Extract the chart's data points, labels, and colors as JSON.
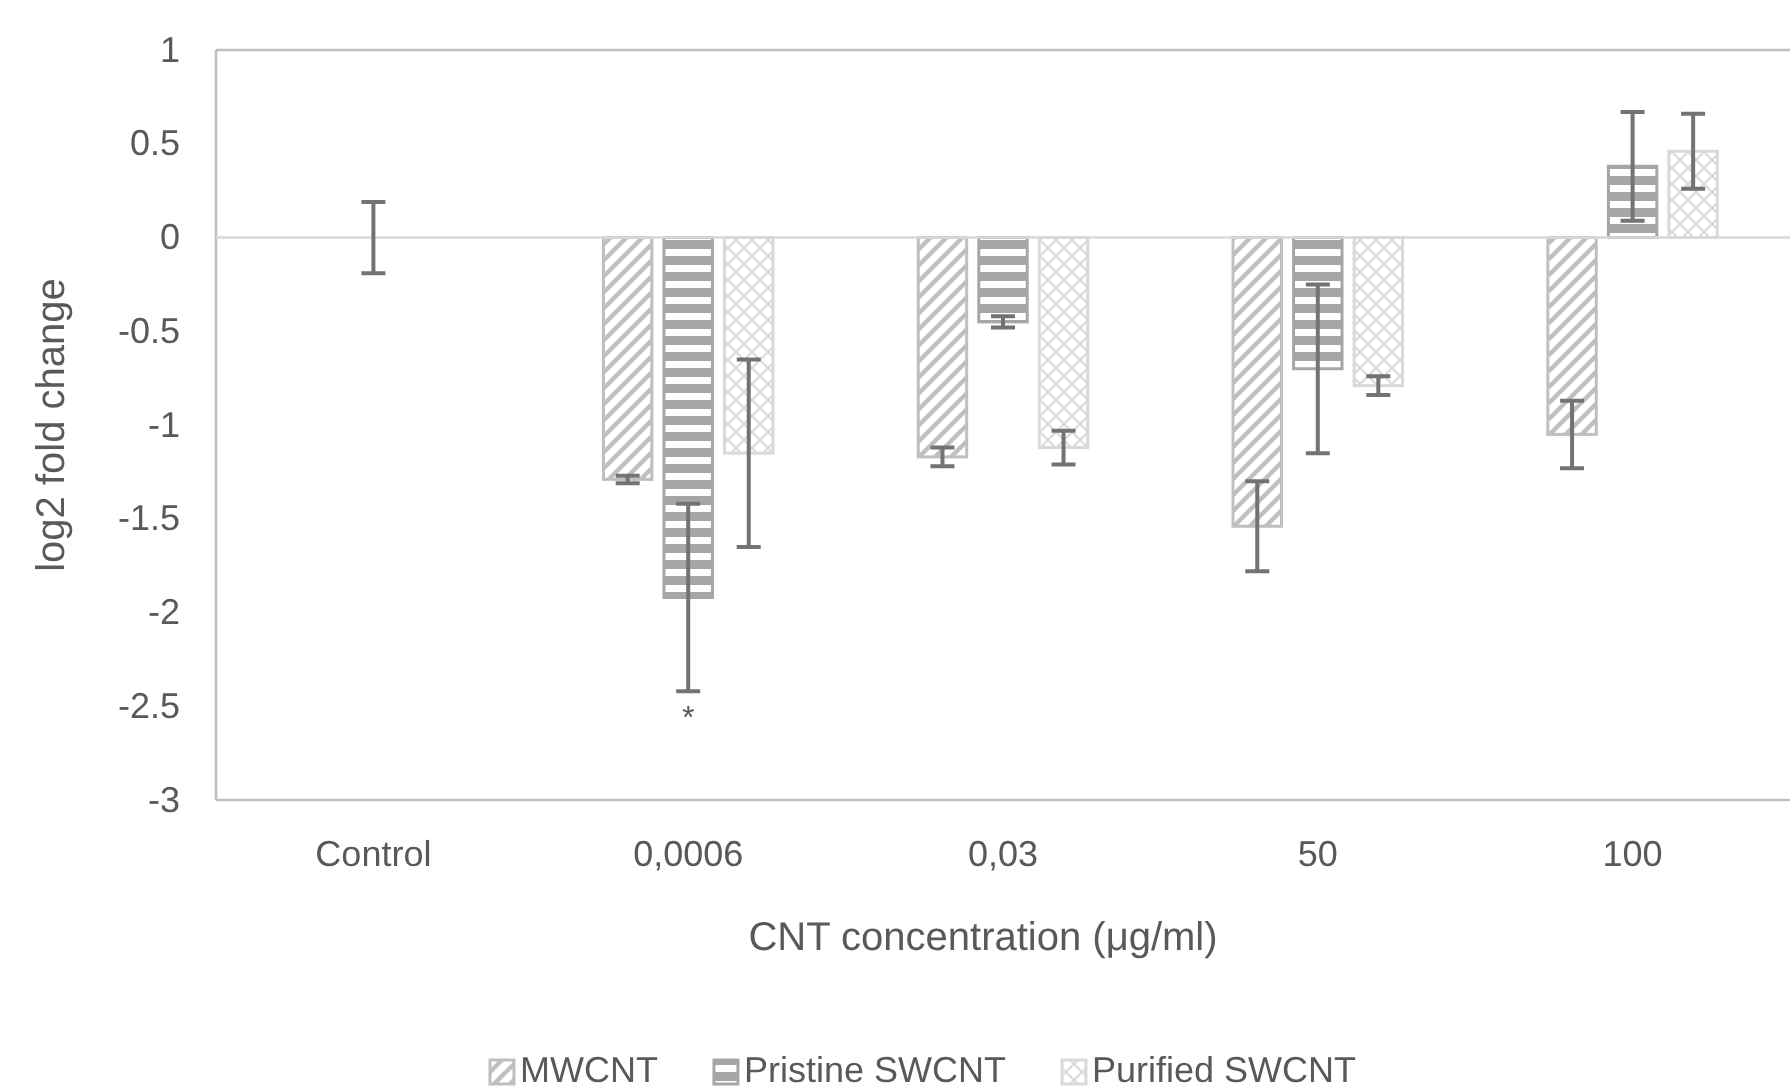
{
  "chart_data": {
    "type": "bar",
    "xlabel": "CNT concentration (μg/ml)",
    "ylabel": "log2 fold change",
    "categories": [
      "Control",
      "0,0006",
      "0,03",
      "50",
      "100"
    ],
    "series": [
      {
        "name": "MWCNT",
        "color": "#bfbfbf",
        "values": [
          null,
          -1.29,
          -1.17,
          -1.54,
          -1.05
        ],
        "errors": [
          null,
          0.02,
          0.05,
          0.24,
          0.18
        ]
      },
      {
        "name": "Pristine SWCNT",
        "color": "#a6a6a6",
        "values": [
          0,
          -1.92,
          -0.45,
          -0.7,
          0.38
        ],
        "errors": [
          0.19,
          0.5,
          0.03,
          0.45,
          0.29
        ]
      },
      {
        "name": "Purified SWCNT",
        "color": "#d9d9d9",
        "values": [
          null,
          -1.15,
          -1.12,
          -0.79,
          0.46
        ],
        "errors": [
          null,
          0.5,
          0.09,
          0.05,
          0.2
        ]
      }
    ],
    "ylim": [
      -3,
      1
    ],
    "yticks": [
      -3,
      -2.5,
      -2,
      -1.5,
      -1,
      -0.5,
      0,
      0.5,
      1
    ],
    "annotations": [
      "*"
    ],
    "ref_lines": [
      {
        "axis": "y",
        "value": 0,
        "color": "#d9d9d9"
      }
    ],
    "legend": "bottom",
    "grid": false
  }
}
